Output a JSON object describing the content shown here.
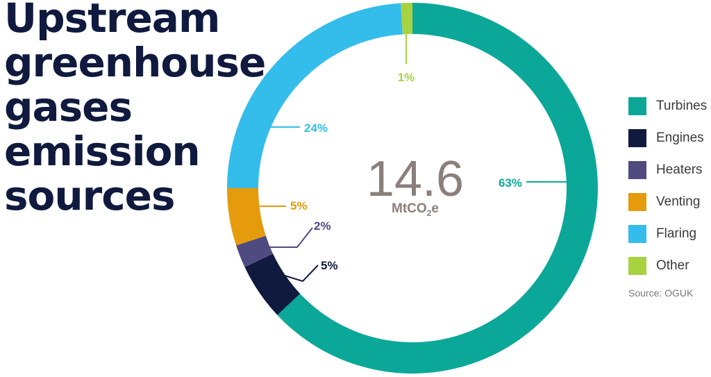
{
  "title_lines": [
    "Upstream",
    "greenhouse",
    "gases",
    "emission",
    "sources"
  ],
  "center": {
    "value": "14.6",
    "unit_main": "MtCO",
    "unit_sub": "2",
    "unit_tail": "e"
  },
  "source": "Source: OGUK",
  "colors": {
    "title": "#0f1a3e",
    "center_value": "#8a7f7a"
  },
  "chart_data": {
    "type": "pie",
    "categories": [
      "Turbines",
      "Engines",
      "Heaters",
      "Venting",
      "Flaring",
      "Other"
    ],
    "values": [
      63,
      5,
      2,
      5,
      24,
      1
    ],
    "data_labels": [
      "63%",
      "5%",
      "2%",
      "5%",
      "24%",
      "1%"
    ],
    "colors": [
      "#0ba89a",
      "#0f1a3e",
      "#4f4a80",
      "#e59b0c",
      "#34bdea",
      "#a9d240"
    ],
    "donut": true,
    "start": "top",
    "direction": "clockwise",
    "legend_position": "right"
  }
}
